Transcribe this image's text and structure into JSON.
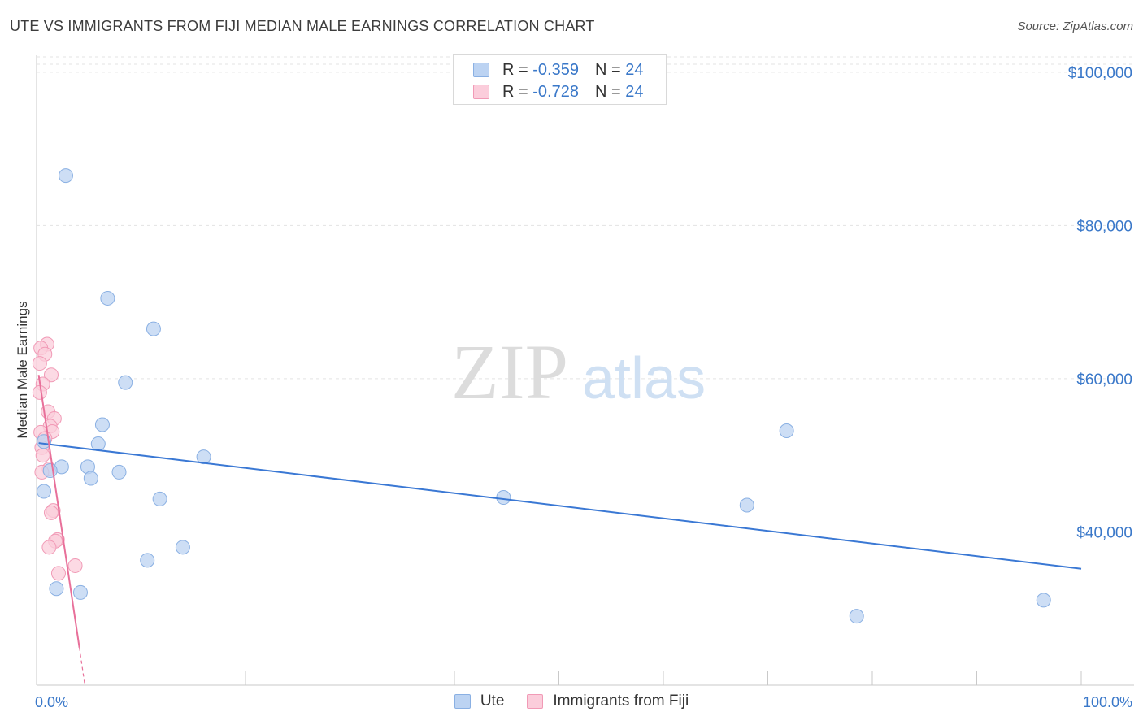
{
  "title": "UTE VS IMMIGRANTS FROM FIJI MEDIAN MALE EARNINGS CORRELATION CHART",
  "source": "Source: ZipAtlas.com",
  "watermark": {
    "zip": "ZIP",
    "atlas": "atlas"
  },
  "stats": [
    {
      "r_label": "R =",
      "r_value": "-0.359",
      "n_label": "N =",
      "n_value": "24"
    },
    {
      "r_label": "R =",
      "r_value": "-0.728",
      "n_label": "N =",
      "n_value": "24"
    }
  ],
  "legend": {
    "series1": "Ute",
    "series2": "Immigrants from Fiji"
  },
  "colors": {
    "ute": "#3a78d4",
    "fiji": "#e8709a",
    "ute_fill": "#bcd3f2",
    "fiji_fill": "#fbcddb",
    "tick_label": "#3a78c9"
  },
  "chart_data": {
    "type": "scatter",
    "title": "UTE VS IMMIGRANTS FROM FIJI MEDIAN MALE EARNINGS CORRELATION CHART",
    "xlabel": "",
    "ylabel": "Median Male Earnings",
    "xlim": [
      0,
      100
    ],
    "ylim": [
      20000,
      102000
    ],
    "x_tick_labels": [
      "0.0%",
      "100.0%"
    ],
    "y_ticks": [
      40000,
      60000,
      80000,
      100000
    ],
    "y_tick_labels": [
      "$40,000",
      "$60,000",
      "$80,000",
      "$100,000"
    ],
    "series": [
      {
        "name": "Ute",
        "points": [
          [
            2.8,
            86500
          ],
          [
            6.8,
            70500
          ],
          [
            11.2,
            66500
          ],
          [
            8.5,
            59500
          ],
          [
            6.3,
            54000
          ],
          [
            5.9,
            51500
          ],
          [
            16.0,
            49800
          ],
          [
            0.7,
            51800
          ],
          [
            2.4,
            48500
          ],
          [
            4.9,
            48500
          ],
          [
            1.3,
            48000
          ],
          [
            7.9,
            47800
          ],
          [
            5.2,
            47000
          ],
          [
            0.7,
            45300
          ],
          [
            11.8,
            44300
          ],
          [
            44.7,
            44500
          ],
          [
            68.0,
            43500
          ],
          [
            14.0,
            38000
          ],
          [
            10.6,
            36300
          ],
          [
            1.9,
            32600
          ],
          [
            4.2,
            32100
          ],
          [
            71.8,
            53200
          ],
          [
            78.5,
            29000
          ],
          [
            96.4,
            31100
          ]
        ],
        "trend": {
          "x1": 0.2,
          "y1": 51600,
          "x2": 100,
          "y2": 35200
        }
      },
      {
        "name": "Immigrants from Fiji",
        "points": [
          [
            1.0,
            64500
          ],
          [
            0.4,
            64000
          ],
          [
            0.8,
            63200
          ],
          [
            0.3,
            62000
          ],
          [
            1.4,
            60500
          ],
          [
            0.6,
            59300
          ],
          [
            0.3,
            58200
          ],
          [
            1.1,
            55700
          ],
          [
            1.7,
            54800
          ],
          [
            1.3,
            53800
          ],
          [
            1.5,
            53100
          ],
          [
            0.4,
            53000
          ],
          [
            0.8,
            52200
          ],
          [
            0.5,
            51000
          ],
          [
            0.6,
            50000
          ],
          [
            1.2,
            48200
          ],
          [
            0.5,
            47800
          ],
          [
            1.6,
            42800
          ],
          [
            1.4,
            42500
          ],
          [
            2.0,
            39000
          ],
          [
            1.8,
            38800
          ],
          [
            1.2,
            38000
          ],
          [
            3.7,
            35600
          ],
          [
            2.1,
            34600
          ]
        ],
        "trend": {
          "x1": 0.2,
          "y1": 60500,
          "x2": 4.1,
          "y2": 24900,
          "dash_x2": 4.6,
          "dash_y2": 20200
        }
      }
    ]
  }
}
